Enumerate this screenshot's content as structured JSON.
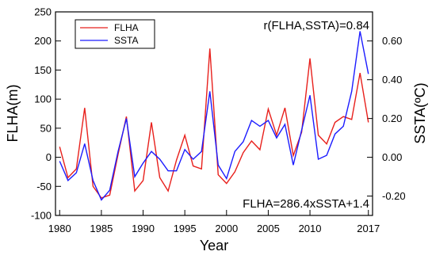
{
  "chart_data": {
    "type": "line",
    "xlabel": "Year",
    "ylabel_left": "FLHA(m)",
    "ylabel_right": "SSTA(ºC)",
    "left_ylim": [
      -100,
      250
    ],
    "right_ylim": [
      -0.3,
      0.75
    ],
    "xlim": [
      1979.5,
      2017.5
    ],
    "x_ticks": [
      1980,
      1985,
      1990,
      1995,
      2000,
      2005,
      2010,
      2017
    ],
    "left_ticks": [
      -100,
      -50,
      0,
      50,
      100,
      150,
      200,
      250
    ],
    "right_ticks": [
      -0.2,
      0.0,
      0.2,
      0.4,
      0.6
    ],
    "right_tick_labels": [
      "-0.20",
      "0.00",
      "0.20",
      "0.40",
      "0.60"
    ],
    "grid": false,
    "legend_position": "top-left",
    "annotations": {
      "correlation": "r(FLHA,SSTA)=0.84",
      "regression": "FLHA=286.4xSSTA+1.4"
    },
    "x": [
      1980,
      1981,
      1982,
      1983,
      1984,
      1985,
      1986,
      1987,
      1988,
      1989,
      1990,
      1991,
      1992,
      1993,
      1994,
      1995,
      1996,
      1997,
      1998,
      1999,
      2000,
      2001,
      2002,
      2003,
      2004,
      2005,
      2006,
      2007,
      2008,
      2009,
      2010,
      2011,
      2012,
      2013,
      2014,
      2015,
      2016,
      2017
    ],
    "series": [
      {
        "name": "FLHA",
        "axis": "left",
        "color": "#e8201c",
        "values": [
          18,
          -35,
          -20,
          85,
          -50,
          -70,
          -65,
          5,
          70,
          -58,
          -40,
          60,
          -35,
          -58,
          -5,
          38,
          -15,
          -20,
          187,
          -30,
          -45,
          -25,
          8,
          28,
          13,
          83,
          38,
          85,
          3,
          43,
          170,
          38,
          23,
          60,
          70,
          65,
          145,
          60
        ]
      },
      {
        "name": "SSTA",
        "axis": "right",
        "color": "#1c1cff",
        "values": [
          -0.02,
          -0.12,
          -0.08,
          0.07,
          -0.12,
          -0.22,
          -0.17,
          0.03,
          0.2,
          -0.1,
          -0.03,
          0.03,
          -0.01,
          -0.07,
          -0.07,
          0.04,
          -0.01,
          0.03,
          0.34,
          -0.04,
          -0.11,
          0.03,
          0.08,
          0.19,
          0.16,
          0.19,
          0.1,
          0.17,
          -0.04,
          0.14,
          0.32,
          -0.01,
          0.01,
          0.12,
          0.16,
          0.34,
          0.65,
          0.43
        ]
      }
    ]
  }
}
